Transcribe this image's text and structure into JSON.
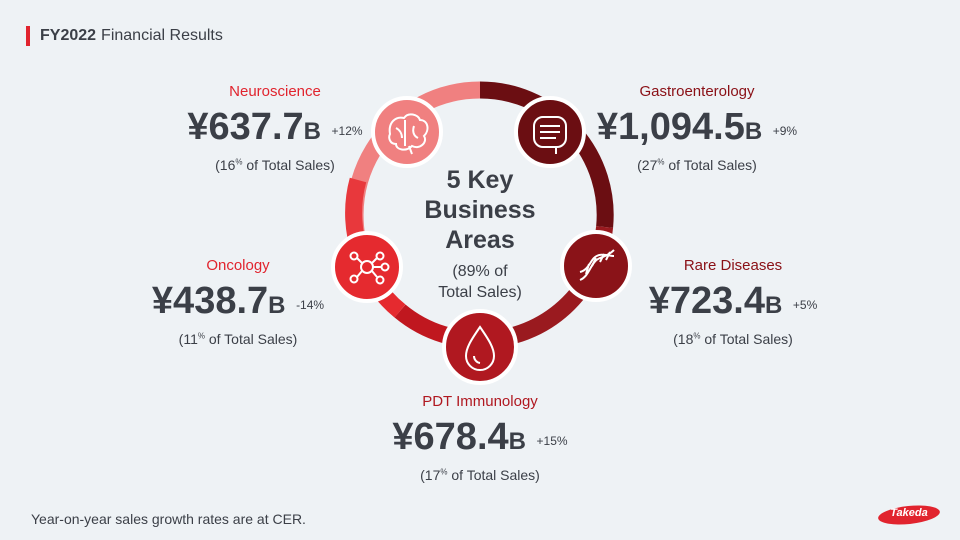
{
  "header": {
    "title_bold": "FY2022",
    "title_rest": "Financial Results"
  },
  "center": {
    "title": "5 Key\nBusiness\nAreas",
    "subtitle": "(89% of\nTotal Sales)"
  },
  "areas": {
    "neuroscience": {
      "name": "Neuroscience",
      "value": "¥637.7",
      "unit": "B",
      "growth": "+12%",
      "share_num": "(16",
      "share_pct": "%",
      "share_text": " of Total Sales)"
    },
    "gastro": {
      "name": "Gastroenterology",
      "value": "¥1,094.5",
      "unit": "B",
      "growth": "+9%",
      "share_num": "(27",
      "share_pct": "%",
      "share_text": " of Total Sales)"
    },
    "oncology": {
      "name": "Oncology",
      "value": "¥438.7",
      "unit": "B",
      "growth": "-14%",
      "share_num": "(11",
      "share_pct": "%",
      "share_text": " of Total Sales)"
    },
    "rare": {
      "name": "Rare Diseases",
      "value": "¥723.4",
      "unit": "B",
      "growth": "+5%",
      "share_num": "(18",
      "share_pct": "%",
      "share_text": " of Total Sales)"
    },
    "pdt": {
      "name": "PDT Immunology",
      "value": "¥678.4",
      "unit": "B",
      "growth": "+15%",
      "share_num": "(17",
      "share_pct": "%",
      "share_text": " of Total Sales)"
    }
  },
  "footnote": "Year-on-year sales growth rates are at CER.",
  "logo": {
    "text": "Takeda"
  },
  "colors": {
    "neuro": "#f08080",
    "gastro": "#6b0e12",
    "rare": "#8a1318",
    "pdt": "#c0171f",
    "oncology": "#e52a2f",
    "accent": "#e1242e"
  },
  "icons": [
    "brain-icon",
    "intestine-icon",
    "dna-icon",
    "blood-drop-icon",
    "molecule-icon"
  ]
}
